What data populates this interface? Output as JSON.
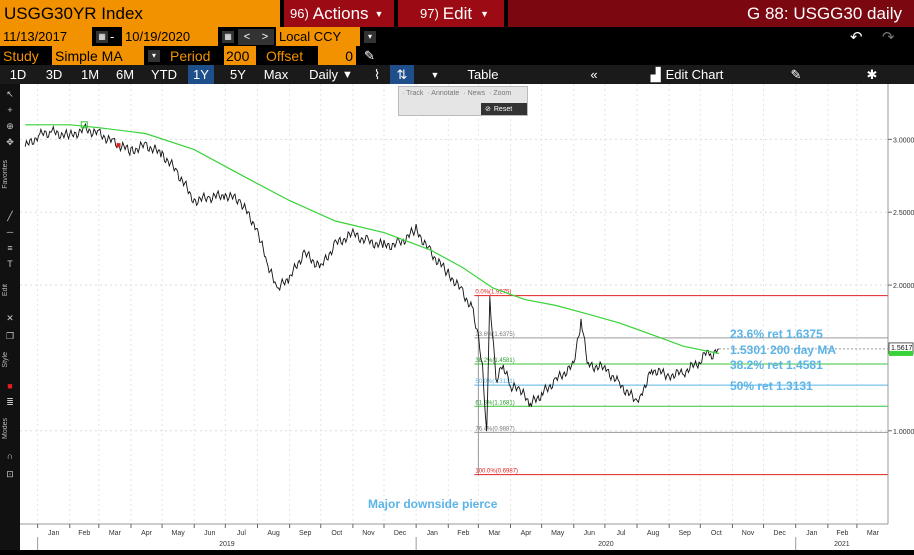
{
  "header": {
    "ticker": "USGG30YR Index",
    "actions_num": "96)",
    "actions_label": "Actions",
    "edit_num": "97)",
    "edit_label": "Edit",
    "right_title": "G 88: USGG30 daily"
  },
  "toolbar": {
    "start_date": "11/13/2017",
    "end_date": "10/19/2020",
    "date_sep": "-",
    "currency": "Local CCY",
    "study_label": "Study",
    "study_value": "Simple MA",
    "period_label": "Period",
    "period_value": "200",
    "offset_label": "Offset",
    "offset_value": "0",
    "timeframes": [
      "1D",
      "3D",
      "1M",
      "6M",
      "YTD",
      "1Y",
      "5Y",
      "Max"
    ],
    "active_timeframe": "1Y",
    "frequency": "Daily",
    "table_label": "Table",
    "edit_chart_label": "Edit Chart"
  },
  "sidebar": {
    "favorites": "Favorites",
    "edit": "Edit",
    "style": "Style",
    "modes": "Modes"
  },
  "mini_toolbar": {
    "items": [
      "Track",
      "Annotate",
      "News",
      "Zoom"
    ],
    "reset": "Reset"
  },
  "icons": {
    "calendar": "calendar-icon",
    "undo": "undo-icon",
    "redo": "redo-icon",
    "pencil": "pencil-icon",
    "gear": "gear-icon",
    "collapse": "double-chevron-left-icon"
  },
  "colors": {
    "accent": "#f39200",
    "header_red": "#9c0a14",
    "ma_line": "#39d339",
    "fib_red": "#e02020",
    "fib_green": "#39c339",
    "fib_blue": "#5ab4e8",
    "fib_gray": "#9a9a9a",
    "annotation": "#5ab4e8"
  },
  "chart_data": {
    "type": "line",
    "series": [
      {
        "name": "",
        "kind": "price",
        "x": [
          "2018-12-20",
          "2019-01-03",
          "2019-01-15",
          "2019-02-01",
          "2019-02-15",
          "2019-03-01",
          "2019-03-15",
          "2019-04-01",
          "2019-04-15",
          "2019-05-01",
          "2019-05-15",
          "2019-06-01",
          "2019-06-15",
          "2019-07-01",
          "2019-07-15",
          "2019-08-01",
          "2019-08-10",
          "2019-08-20",
          "2019-09-01",
          "2019-09-15",
          "2019-10-01",
          "2019-10-15",
          "2019-11-01",
          "2019-11-15",
          "2019-12-01",
          "2019-12-15",
          "2020-01-01",
          "2020-01-15",
          "2020-02-01",
          "2020-02-15",
          "2020-02-25",
          "2020-03-01",
          "2020-03-05",
          "2020-03-09",
          "2020-03-12",
          "2020-03-18",
          "2020-03-25",
          "2020-04-01",
          "2020-04-10",
          "2020-04-20",
          "2020-05-01",
          "2020-05-15",
          "2020-06-01",
          "2020-06-08",
          "2020-06-15",
          "2020-07-01",
          "2020-07-15",
          "2020-08-01",
          "2020-08-05",
          "2020-08-15",
          "2020-09-01",
          "2020-09-15",
          "2020-10-01",
          "2020-10-05",
          "2020-10-12",
          "2020-10-19"
        ],
        "y": [
          2.95,
          3.03,
          3.05,
          3.02,
          3.07,
          3.04,
          2.98,
          2.92,
          2.96,
          2.9,
          2.78,
          2.58,
          2.6,
          2.62,
          2.58,
          2.38,
          2.15,
          1.97,
          2.05,
          2.22,
          2.12,
          2.28,
          2.35,
          2.3,
          2.27,
          2.28,
          2.38,
          2.22,
          2.08,
          1.95,
          1.82,
          1.65,
          1.45,
          0.99,
          1.92,
          1.35,
          1.45,
          1.3,
          1.28,
          1.18,
          1.25,
          1.35,
          1.45,
          1.75,
          1.45,
          1.43,
          1.32,
          1.2,
          1.25,
          1.42,
          1.38,
          1.4,
          1.48,
          1.56,
          1.52,
          1.5617
        ]
      },
      {
        "name": "",
        "kind": "moving-average",
        "x": [
          "2018-12-20",
          "2019-02-01",
          "2019-03-01",
          "2019-04-15",
          "2019-06-01",
          "2019-07-15",
          "2019-09-01",
          "2019-10-15",
          "2019-12-01",
          "2020-01-15",
          "2020-02-15",
          "2020-03-15",
          "2020-04-15",
          "2020-05-15",
          "2020-06-15",
          "2020-07-15",
          "2020-08-15",
          "2020-09-15",
          "2020-10-19"
        ],
        "y": [
          3.1,
          3.1,
          3.08,
          3.04,
          2.93,
          2.76,
          2.58,
          2.44,
          2.36,
          2.24,
          2.12,
          1.98,
          1.9,
          1.86,
          1.8,
          1.74,
          1.66,
          1.58,
          1.53
        ]
      }
    ],
    "fib_levels": [
      {
        "label": "0.0%(1.9275)",
        "value": 1.9275,
        "color": "#e02020"
      },
      {
        "label": "23.6%(1.6375)",
        "value": 1.6375,
        "color": "#9a9a9a"
      },
      {
        "label": "38.2%(1.4581)",
        "value": 1.4581,
        "color": "#39c339"
      },
      {
        "label": "50.0%(1.3131)",
        "value": 1.3131,
        "color": "#5ab4e8"
      },
      {
        "label": "61.8%(1.1681)",
        "value": 1.1681,
        "color": "#39c339"
      },
      {
        "label": "76.4%(0.9887)",
        "value": 0.9887,
        "color": "#9a9a9a"
      },
      {
        "label": "100.0%(0.6987)",
        "value": 0.6987,
        "color": "#e02020"
      }
    ],
    "annotations": [
      {
        "text": "23.6% ret 1.6375",
        "value": 1.6375
      },
      {
        "text": "1.5301 200 day MA",
        "value": 1.53
      },
      {
        "text": "38.2% ret 1.4581",
        "value": 1.4581
      },
      {
        "text": "50% ret 1.3131",
        "value": 1.3131
      },
      {
        "text": "Major downside pierce",
        "value": 0.55
      }
    ],
    "last_price": "1.5617",
    "last_value": 1.5617,
    "y_ticks": [
      {
        "value": 3.0,
        "label": "3.0000"
      },
      {
        "value": 2.5,
        "label": "2.5000"
      },
      {
        "value": 2.0,
        "label": "2.0000"
      },
      {
        "value": 1.0,
        "label": "1.0000"
      }
    ],
    "ylim": [
      0.36,
      3.38
    ],
    "x_start": "2018-12-15",
    "x_end": "2021-03-31",
    "month_ticks": [
      "Jan",
      "Feb",
      "Mar",
      "Apr",
      "May",
      "Jun",
      "Jul",
      "Aug",
      "Sep",
      "Oct",
      "Nov",
      "Dec",
      "Jan",
      "Feb",
      "Mar",
      "Apr",
      "May",
      "Jun",
      "Jul",
      "Aug",
      "Sep",
      "Oct",
      "Nov",
      "Dec",
      "Jan",
      "Feb",
      "Mar"
    ],
    "year_labels": [
      "2019",
      "2020",
      "2021"
    ]
  }
}
